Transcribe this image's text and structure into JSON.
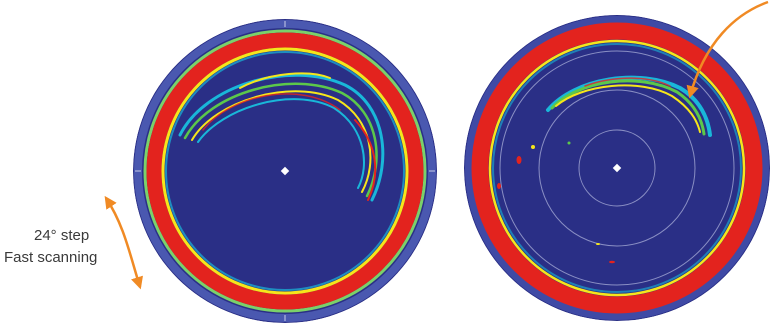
{
  "annotation": {
    "step_label": "24° step",
    "mode_label": "Fast scanning"
  },
  "colors": {
    "background": "#ffffff",
    "scope_background": "#2a2f86",
    "ring_red": "#e3231e",
    "ring_yellow": "#f6e61a",
    "echo_cyan": "#19b7d9",
    "echo_green": "#5cc84a",
    "arrow_orange": "#f08a24",
    "range_rings": "#8a8fc4",
    "caption_text": "#3a3a3a"
  },
  "icons": {
    "rotation_arrow": "curved-double-arrow-icon",
    "pointer_arrow": "curved-arrow-icon",
    "own_ship": "own-ship-marker-icon"
  }
}
